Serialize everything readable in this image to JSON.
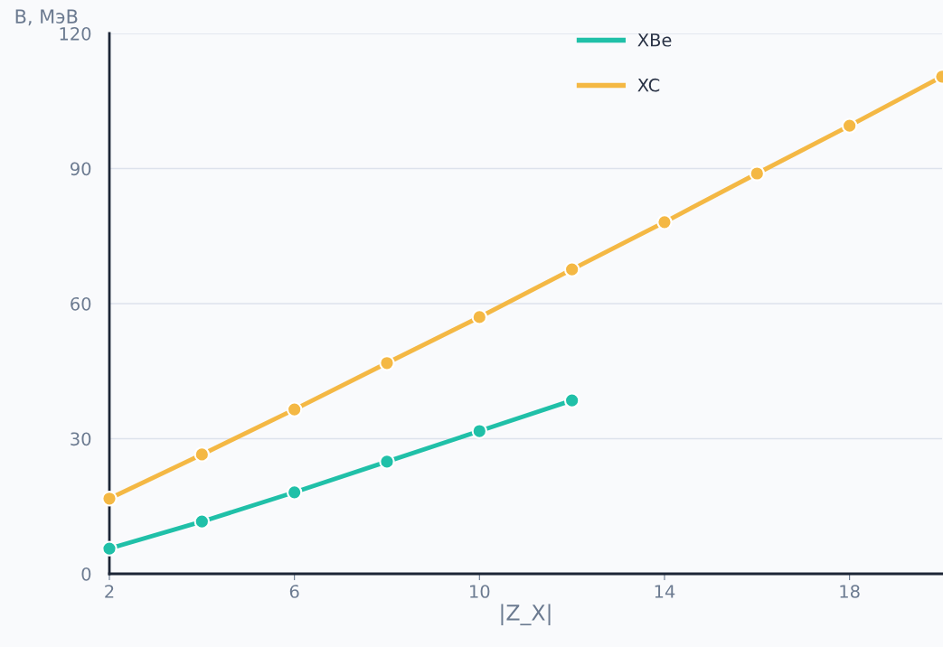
{
  "chart_data": {
    "type": "line",
    "xlabel": "|Z_X|",
    "ylabel": "B, МэВ",
    "x": [
      2,
      4,
      6,
      8,
      10,
      12,
      14,
      16,
      18,
      20
    ],
    "series": [
      {
        "name": "XBe",
        "color": "#20c0a8",
        "values": [
          5.6,
          11.6,
          18.1,
          24.9,
          31.7,
          38.5,
          null,
          null,
          null,
          null
        ]
      },
      {
        "name": "XC",
        "color": "#f4b844",
        "values": [
          16.7,
          26.5,
          36.5,
          46.8,
          57.0,
          67.6,
          78.1,
          88.9,
          99.5,
          110.4
        ]
      }
    ],
    "xlim": [
      2,
      20
    ],
    "xticks": [
      2,
      6,
      10,
      14,
      18
    ],
    "ylim": [
      0,
      120
    ],
    "yticks": [
      0,
      30,
      60,
      90,
      120
    ],
    "grid": "y",
    "legend": "top",
    "marker": "circle",
    "line_style": "solid"
  }
}
